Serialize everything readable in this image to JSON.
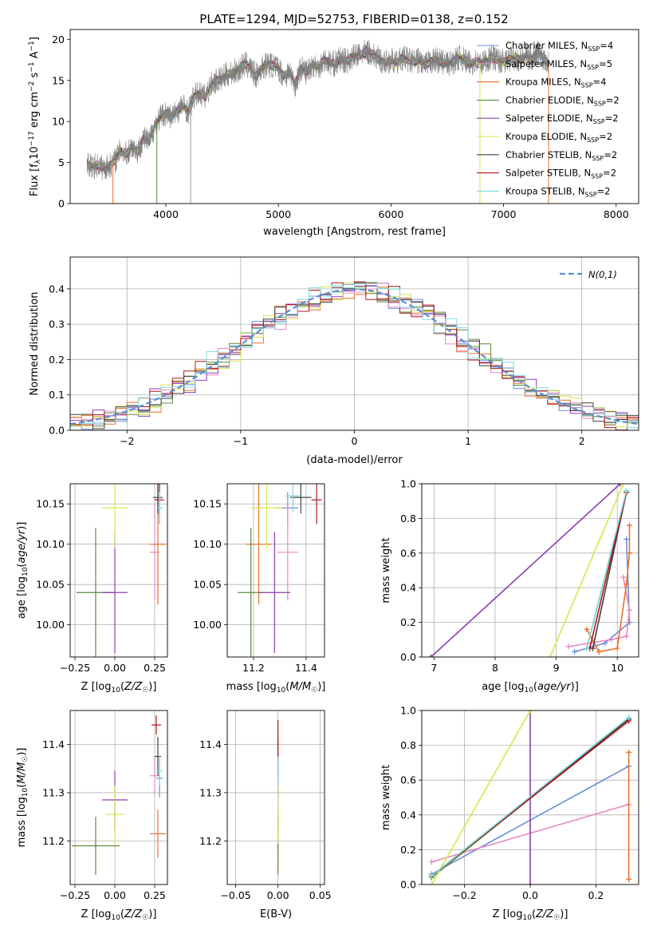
{
  "figure": {
    "title": "PLATE=1294, MJD=52753, FIBERID=0138, z=0.152"
  },
  "chart_data": [
    {
      "type": "line",
      "id": "spectrum",
      "title": "PLATE=1294, MJD=52753, FIBERID=0138, z=0.152",
      "xlabel": "wavelength [Angstrom, rest frame]",
      "ylabel": "Flux [f_λ 10^-17 erg cm^-2 s^-1 A^-1]",
      "xlim": [
        3150,
        8200
      ],
      "ylim": [
        0,
        21.2
      ],
      "xticks": [
        4000,
        5000,
        6000,
        7000,
        8000
      ],
      "yticks": [
        0,
        5,
        10,
        15,
        20
      ],
      "grid": false,
      "legend_position": "top-right",
      "data_curve": {
        "name": "",
        "color": "#808080",
        "x": [
          3300,
          3350,
          3400,
          3450,
          3500,
          3550,
          3600,
          3650,
          3700,
          3750,
          3800,
          3850,
          3900,
          3950,
          4000,
          4050,
          4100,
          4150,
          4200,
          4250,
          4300,
          4350,
          4400,
          4450,
          4500,
          4550,
          4600,
          4650,
          4700,
          4750,
          4800,
          4850,
          4900,
          4950,
          5000,
          5050,
          5100,
          5150,
          5200,
          5250,
          5300,
          5350,
          5400,
          5450,
          5500,
          5550,
          5600,
          5650,
          5700,
          5750,
          5800,
          5850,
          5900,
          5950,
          6000,
          6050,
          6100,
          6150,
          6200,
          6250,
          6300,
          6350,
          6400,
          6450,
          6500,
          6550,
          6600,
          6650,
          6700,
          6750,
          6800,
          6850,
          6900,
          6950,
          7000,
          7050,
          7100,
          7150,
          7200,
          7250,
          7300,
          7350,
          7400
        ],
        "y": [
          4.8,
          4.5,
          4.7,
          4.3,
          4.6,
          5.3,
          6.5,
          6.0,
          7.0,
          6.3,
          8.0,
          7.5,
          9.5,
          10.5,
          11.0,
          10.5,
          11.3,
          12.0,
          11.2,
          13.0,
          13.5,
          13.0,
          14.5,
          15.0,
          15.2,
          15.8,
          16.0,
          16.3,
          17.0,
          16.5,
          15.5,
          16.5,
          17.0,
          16.8,
          16.5,
          15.5,
          16.0,
          14.5,
          16.5,
          16.0,
          17.0,
          16.5,
          17.5,
          17.2,
          17.0,
          17.6,
          17.3,
          17.8,
          18.0,
          18.3,
          18.5,
          18.0,
          17.5,
          17.2,
          17.5,
          17.0,
          17.8,
          17.5,
          17.2,
          17.5,
          16.8,
          17.2,
          17.5,
          17.3,
          17.0,
          17.2,
          17.8,
          17.5,
          17.0,
          17.3,
          17.0,
          17.5,
          17.8,
          17.5,
          17.2,
          17.5,
          17.8,
          17.5,
          18.0,
          17.5,
          18.5,
          17.8,
          17.2
        ]
      },
      "spikes": [
        {
          "x": 3530,
          "color": "#e8702a"
        },
        {
          "x": 3920,
          "color": "#5a8a3a"
        },
        {
          "x": 4220,
          "color": "#999999"
        },
        {
          "x": 6790,
          "color": "#d4e84a"
        },
        {
          "x": 7400,
          "color": "#e8702a"
        }
      ],
      "series": [
        {
          "name": "Chabrier MILES, N_SSP=4",
          "label_main": "Chabrier MILES, N",
          "label_sub": "SSP",
          "label_end": "=4",
          "color": "#6c8ed6"
        },
        {
          "name": "Salpeter MILES, N_SSP=5",
          "label_main": "Salpeter MILES, N",
          "label_sub": "SSP",
          "label_end": "=5",
          "color": "#e887c0"
        },
        {
          "name": "Kroupa MILES, N_SSP=4",
          "label_main": "Kroupa MILES, N",
          "label_sub": "SSP",
          "label_end": "=4",
          "color": "#e8702a"
        },
        {
          "name": "Chabrier ELODIE, N_SSP=2",
          "label_main": "Chabrier ELODIE, N",
          "label_sub": "SSP",
          "label_end": "=2",
          "color": "#5a8a3a"
        },
        {
          "name": "Salpeter ELODIE, N_SSP=2",
          "label_main": "Salpeter ELODIE, N",
          "label_sub": "SSP",
          "label_end": "=2",
          "color": "#8e3cb0"
        },
        {
          "name": "Kroupa ELODIE, N_SSP=2",
          "label_main": "Kroupa ELODIE, N",
          "label_sub": "SSP",
          "label_end": "=2",
          "color": "#d4e84a"
        },
        {
          "name": "Chabrier STELIB, N_SSP=2",
          "label_main": "Chabrier STELIB, N",
          "label_sub": "SSP",
          "label_end": "=2",
          "color": "#404040"
        },
        {
          "name": "Salpeter STELIB, N_SSP=2",
          "label_main": "Salpeter STELIB, N",
          "label_sub": "SSP",
          "label_end": "=2",
          "color": "#b01818"
        },
        {
          "name": "Kroupa STELIB, N_SSP=2",
          "label_main": "Kroupa STELIB, N",
          "label_sub": "SSP",
          "label_end": "=2",
          "color": "#7fd8e0"
        }
      ]
    },
    {
      "type": "line",
      "id": "residual_histogram",
      "xlabel": "(data-model)/error",
      "ylabel": "Normed distribution",
      "xlim": [
        -2.5,
        2.5
      ],
      "ylim": [
        0,
        0.49
      ],
      "xticks": [
        -2,
        -1,
        0,
        1,
        2
      ],
      "yticks": [
        0.0,
        0.1,
        0.2,
        0.3,
        0.4
      ],
      "grid": true,
      "legend_position": "top-right",
      "reference": {
        "name": "N(0,1)",
        "color": "#5b8bd6",
        "style": "dashed",
        "mean": 0,
        "sigma": 1
      },
      "bin_width": 0.1,
      "series_colors": [
        "#6c8ed6",
        "#e887c0",
        "#e8702a",
        "#5a8a3a",
        "#8e3cb0",
        "#d4e84a",
        "#404040",
        "#b01818",
        "#7fd8e0"
      ]
    },
    {
      "type": "scatter",
      "id": "age_vs_Z",
      "xlabel": "Z [log10(Z/Z☉)]",
      "ylabel": "age [log10(age/yr)]",
      "xlim": [
        -0.28,
        0.33
      ],
      "ylim": [
        9.96,
        10.175
      ],
      "xticks": [
        -0.25,
        0.0,
        0.25
      ],
      "yticks": [
        10.0,
        10.05,
        10.1,
        10.15
      ],
      "grid": true,
      "points": [
        {
          "x": 0.27,
          "y": 10.155,
          "xerr": 0.02,
          "yerr": 0.02,
          "color": "#6c8ed6"
        },
        {
          "x": 0.25,
          "y": 10.09,
          "xerr": 0.03,
          "yerr": 0.06,
          "color": "#e887c0"
        },
        {
          "x": 0.27,
          "y": 10.1,
          "xerr": 0.05,
          "yerr": 0.075,
          "color": "#e8702a"
        },
        {
          "x": -0.12,
          "y": 10.04,
          "xerr": 0.12,
          "yerr": 0.08,
          "color": "#5a8a3a"
        },
        {
          "x": 0.0,
          "y": 10.04,
          "xerr": 0.08,
          "yerr": 0.075,
          "color": "#8e3cb0"
        },
        {
          "x": 0.0,
          "y": 10.145,
          "xerr": 0.08,
          "yerr": 0.05,
          "color": "#d4e84a"
        },
        {
          "x": 0.27,
          "y": 10.158,
          "xerr": 0.03,
          "yerr": 0.02,
          "color": "#404040"
        },
        {
          "x": 0.28,
          "y": 10.155,
          "xerr": 0.03,
          "yerr": 0.03,
          "color": "#b01818"
        },
        {
          "x": 0.28,
          "y": 10.145,
          "xerr": 0.02,
          "yerr": 0.02,
          "color": "#7fd8e0"
        }
      ]
    },
    {
      "type": "scatter",
      "id": "age_vs_mass",
      "xlabel": "mass [log10(M/M☉)]",
      "ylabel": "",
      "xlim": [
        11.1,
        11.47
      ],
      "ylim": [
        9.96,
        10.175
      ],
      "xticks": [
        11.2,
        11.4
      ],
      "yticks": [
        10.0,
        10.05,
        10.1,
        10.15
      ],
      "grid": true,
      "points": [
        {
          "x": 11.33,
          "y": 10.145,
          "xerr": 0.04,
          "yerr": 0.02,
          "color": "#6c8ed6"
        },
        {
          "x": 11.33,
          "y": 10.09,
          "xerr": 0.04,
          "yerr": 0.06,
          "color": "#e887c0"
        },
        {
          "x": 11.22,
          "y": 10.1,
          "xerr": 0.05,
          "yerr": 0.075,
          "color": "#e8702a"
        },
        {
          "x": 11.19,
          "y": 10.04,
          "xerr": 0.05,
          "yerr": 0.08,
          "color": "#5a8a3a"
        },
        {
          "x": 11.28,
          "y": 10.04,
          "xerr": 0.06,
          "yerr": 0.075,
          "color": "#8e3cb0"
        },
        {
          "x": 11.25,
          "y": 10.145,
          "xerr": 0.06,
          "yerr": 0.05,
          "color": "#d4e84a"
        },
        {
          "x": 11.38,
          "y": 10.158,
          "xerr": 0.04,
          "yerr": 0.02,
          "color": "#404040"
        },
        {
          "x": 11.44,
          "y": 10.155,
          "xerr": 0.02,
          "yerr": 0.03,
          "color": "#b01818"
        },
        {
          "x": 11.35,
          "y": 10.16,
          "xerr": 0.03,
          "yerr": 0.02,
          "color": "#7fd8e0"
        }
      ]
    },
    {
      "type": "line",
      "id": "mass_weight_vs_age",
      "xlabel": "age [log10(age/yr)]",
      "ylabel": "mass weight",
      "xlim": [
        6.8,
        10.35
      ],
      "ylim": [
        0,
        1.0
      ],
      "xticks": [
        7,
        8,
        9,
        10
      ],
      "yticks": [
        0.0,
        0.2,
        0.4,
        0.6,
        0.8,
        1.0
      ],
      "grid": true,
      "series": [
        {
          "color": "#6c8ed6",
          "x": [
            9.3,
            9.8,
            10.2,
            10.15
          ],
          "y": [
            0.03,
            0.08,
            0.2,
            0.68
          ]
        },
        {
          "color": "#e887c0",
          "x": [
            9.2,
            9.9,
            10.15,
            10.2,
            10.1
          ],
          "y": [
            0.06,
            0.1,
            0.12,
            0.27,
            0.46
          ]
        },
        {
          "color": "#e8702a",
          "x": [
            9.5,
            9.7,
            10.0,
            10.15,
            10.2,
            10.2
          ],
          "y": [
            0.16,
            0.03,
            0.05,
            0.42,
            0.6,
            0.76
          ]
        },
        {
          "color": "#5a8a3a",
          "x": [
            9.5,
            10.15
          ],
          "y": [
            0.05,
            0.95
          ]
        },
        {
          "color": "#8e3cb0",
          "x": [
            6.95,
            10.05
          ],
          "y": [
            0.0,
            1.0
          ]
        },
        {
          "color": "#d4e84a",
          "x": [
            8.9,
            10.1
          ],
          "y": [
            0.0,
            1.0
          ]
        },
        {
          "color": "#404040",
          "x": [
            9.6,
            10.15
          ],
          "y": [
            0.05,
            0.95
          ]
        },
        {
          "color": "#b01818",
          "x": [
            9.55,
            10.15
          ],
          "y": [
            0.05,
            0.95
          ]
        },
        {
          "color": "#7fd8e0",
          "x": [
            9.5,
            10.15
          ],
          "y": [
            0.05,
            0.96
          ]
        }
      ]
    },
    {
      "type": "scatter",
      "id": "mass_vs_Z",
      "xlabel": "Z [log10(Z/Z☉)]",
      "ylabel": "mass [log10(M/M☉)]",
      "xlim": [
        -0.28,
        0.33
      ],
      "ylim": [
        11.11,
        11.47
      ],
      "xticks": [
        -0.25,
        0.0,
        0.25
      ],
      "yticks": [
        11.2,
        11.3,
        11.4
      ],
      "grid": true,
      "points": [
        {
          "x": 0.28,
          "y": 11.33,
          "xerr": 0.02,
          "yerr": 0.04,
          "color": "#6c8ed6"
        },
        {
          "x": 0.25,
          "y": 11.335,
          "xerr": 0.03,
          "yerr": 0.04,
          "color": "#e887c0"
        },
        {
          "x": 0.27,
          "y": 11.215,
          "xerr": 0.05,
          "yerr": 0.05,
          "color": "#e8702a"
        },
        {
          "x": -0.12,
          "y": 11.19,
          "xerr": 0.15,
          "yerr": 0.06,
          "color": "#5a8a3a"
        },
        {
          "x": 0.0,
          "y": 11.285,
          "xerr": 0.08,
          "yerr": 0.06,
          "color": "#8e3cb0"
        },
        {
          "x": 0.0,
          "y": 11.255,
          "xerr": 0.06,
          "yerr": 0.06,
          "color": "#d4e84a"
        },
        {
          "x": 0.27,
          "y": 11.375,
          "xerr": 0.02,
          "yerr": 0.04,
          "color": "#404040"
        },
        {
          "x": 0.26,
          "y": 11.44,
          "xerr": 0.03,
          "yerr": 0.02,
          "color": "#b01818"
        },
        {
          "x": 0.28,
          "y": 11.345,
          "xerr": 0.02,
          "yerr": 0.03,
          "color": "#7fd8e0"
        }
      ]
    },
    {
      "type": "scatter",
      "id": "mass_vs_EBV",
      "xlabel": "E(B-V)",
      "ylabel": "",
      "xlim": [
        -0.06,
        0.055
      ],
      "ylim": [
        11.11,
        11.47
      ],
      "xticks": [
        -0.05,
        0.0,
        0.05
      ],
      "yticks": [
        11.2,
        11.3,
        11.4
      ],
      "grid": true,
      "points": [
        {
          "x": 0.0,
          "y": 11.33,
          "yerr": 0.04,
          "color": "#6c8ed6"
        },
        {
          "x": 0.0,
          "y": 11.335,
          "yerr": 0.04,
          "color": "#e887c0"
        },
        {
          "x": 0.0,
          "y": 11.215,
          "yerr": 0.05,
          "color": "#e8702a"
        },
        {
          "x": 0.0,
          "y": 11.19,
          "yerr": 0.06,
          "color": "#5a8a3a"
        },
        {
          "x": 0.0,
          "y": 11.285,
          "yerr": 0.06,
          "color": "#8e3cb0"
        },
        {
          "x": 0.0,
          "y": 11.255,
          "yerr": 0.06,
          "color": "#d4e84a"
        },
        {
          "x": 0.0,
          "y": 11.375,
          "yerr": 0.04,
          "color": "#404040"
        },
        {
          "x": 0.0,
          "y": 11.41,
          "yerr": 0.04,
          "color": "#b01818"
        },
        {
          "x": 0.0,
          "y": 11.345,
          "yerr": 0.03,
          "color": "#7fd8e0"
        }
      ]
    },
    {
      "type": "line",
      "id": "mass_weight_vs_Z",
      "xlabel": "Z [log10(Z/Z☉)]",
      "ylabel": "mass weight",
      "xlim": [
        -0.33,
        0.33
      ],
      "ylim": [
        0,
        1.0
      ],
      "xticks": [
        -0.2,
        0.0,
        0.2
      ],
      "yticks": [
        0.0,
        0.2,
        0.4,
        0.6,
        0.8,
        1.0
      ],
      "grid": true,
      "series": [
        {
          "color": "#6c8ed6",
          "x": [
            -0.3,
            0.3
          ],
          "y": [
            0.06,
            0.68
          ]
        },
        {
          "color": "#e887c0",
          "x": [
            -0.3,
            0.3
          ],
          "y": [
            0.13,
            0.46
          ]
        },
        {
          "color": "#e8702a",
          "x": [
            0.3,
            0.3
          ],
          "y": [
            0.03,
            0.76
          ]
        },
        {
          "color": "#5a8a3a",
          "x": [
            -0.3,
            0.3
          ],
          "y": [
            0.04,
            0.95
          ]
        },
        {
          "color": "#8e3cb0",
          "x": [
            0.0,
            0.0
          ],
          "y": [
            0.0,
            1.0
          ]
        },
        {
          "color": "#d4e84a",
          "x": [
            -0.3,
            0.0
          ],
          "y": [
            0.0,
            1.0
          ]
        },
        {
          "color": "#404040",
          "x": [
            -0.3,
            0.3
          ],
          "y": [
            0.05,
            0.95
          ]
        },
        {
          "color": "#b01818",
          "x": [
            -0.3,
            0.3
          ],
          "y": [
            0.05,
            0.94
          ]
        },
        {
          "color": "#7fd8e0",
          "x": [
            -0.3,
            0.3
          ],
          "y": [
            0.05,
            0.96
          ]
        }
      ]
    }
  ]
}
